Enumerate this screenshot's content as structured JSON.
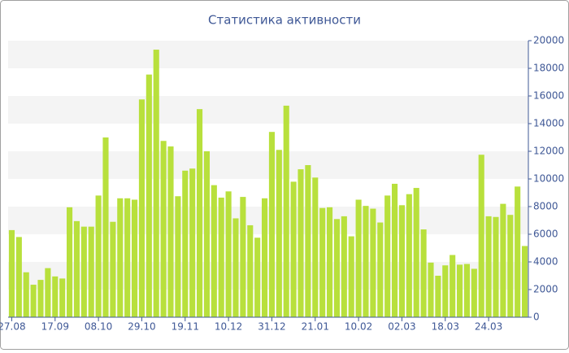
{
  "chart_data": {
    "type": "bar",
    "title": "Статистика активности",
    "categories": [
      "27.08",
      null,
      null,
      null,
      null,
      null,
      "17.09",
      null,
      null,
      null,
      null,
      null,
      "08.10",
      null,
      null,
      null,
      null,
      null,
      "29.10",
      null,
      null,
      null,
      null,
      null,
      "19.11",
      null,
      null,
      null,
      null,
      null,
      "10.12",
      null,
      null,
      null,
      null,
      null,
      "31.12",
      null,
      null,
      null,
      null,
      null,
      "21.01",
      null,
      null,
      null,
      null,
      null,
      "10.02",
      null,
      null,
      null,
      null,
      null,
      "02.03",
      null,
      null,
      null,
      null,
      null,
      "18.03",
      null,
      null,
      null,
      null,
      null,
      "24.03",
      null,
      null,
      null,
      null,
      null
    ],
    "values": [
      6300,
      5800,
      3250,
      2350,
      2700,
      3550,
      2950,
      2800,
      7950,
      6950,
      6550,
      6550,
      8800,
      13000,
      6900,
      8600,
      8600,
      8500,
      15750,
      17550,
      19350,
      12750,
      12350,
      8750,
      10600,
      10750,
      15050,
      12000,
      9550,
      8650,
      9100,
      7150,
      8700,
      6650,
      5750,
      8600,
      13400,
      12100,
      15300,
      9800,
      10700,
      11000,
      10100,
      7900,
      7950,
      7100,
      7300,
      5850,
      8500,
      8050,
      7850,
      6850,
      8800,
      9650,
      8100,
      8900,
      9350,
      6350,
      3950,
      3000,
      3750,
      4500,
      3800,
      3850,
      3500,
      11750,
      7300,
      7250,
      8200,
      7400,
      9450,
      5150
    ],
    "color": "#b8e03c",
    "ylim": [
      0,
      20000
    ],
    "yticks": [
      0,
      2000,
      4000,
      6000,
      8000,
      10000,
      12000,
      14000,
      16000,
      18000,
      20000
    ],
    "grid": true
  }
}
